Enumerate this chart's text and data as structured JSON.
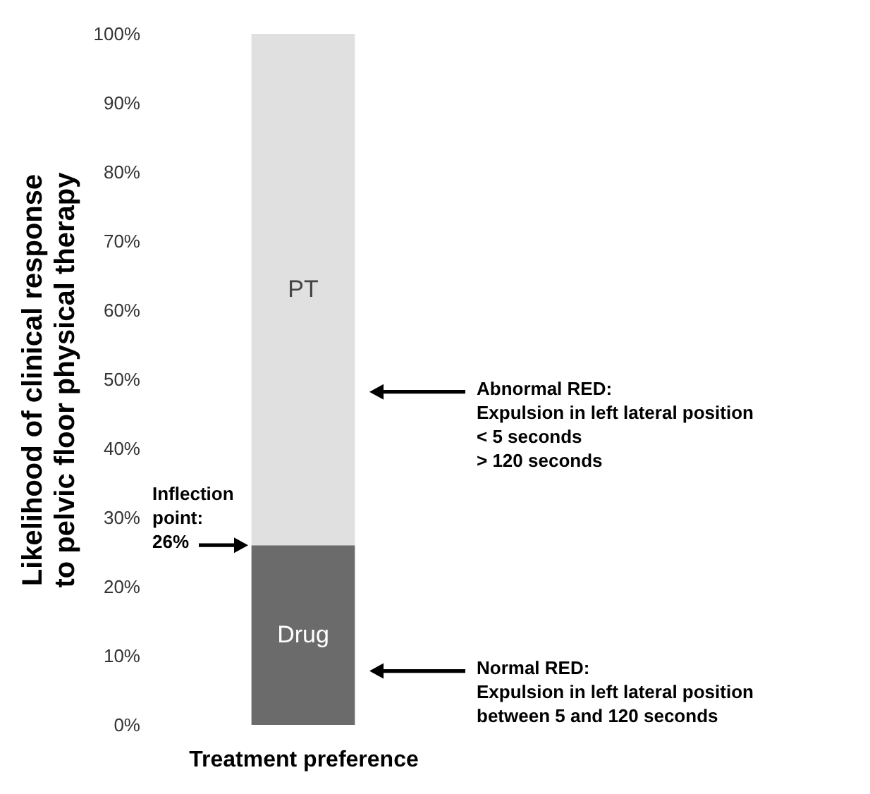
{
  "chart_data": {
    "type": "bar",
    "xlabel": "Treatment preference",
    "ylabel": "Likelihood of clinical response\nto pelvic floor physical therapy",
    "categories": [
      null
    ],
    "stacked": true,
    "series": [
      {
        "name": "Drug",
        "color": "#6b6b6b",
        "values": [
          26
        ]
      },
      {
        "name": "PT",
        "color": "#e0e0e0",
        "values": [
          74
        ]
      }
    ],
    "ylim": [
      0,
      100
    ],
    "yticks": [
      {
        "value": 0,
        "label": "0%"
      },
      {
        "value": 10,
        "label": "10%"
      },
      {
        "value": 20,
        "label": "20%"
      },
      {
        "value": 30,
        "label": "30%"
      },
      {
        "value": 40,
        "label": "40%"
      },
      {
        "value": 50,
        "label": "50%"
      },
      {
        "value": 60,
        "label": "60%"
      },
      {
        "value": 70,
        "label": "70%"
      },
      {
        "value": 80,
        "label": "80%"
      },
      {
        "value": 90,
        "label": "90%"
      },
      {
        "value": 100,
        "label": "100%"
      }
    ],
    "grid": false,
    "legend": false,
    "annotations": [
      "Inflection\npoint:\n26%",
      "Abnormal RED:\nExpulsion in left lateral position\n< 5 seconds\n> 120 seconds",
      "Normal RED:\nExpulsion in left lateral position\nbetween 5 and 120 seconds"
    ]
  }
}
